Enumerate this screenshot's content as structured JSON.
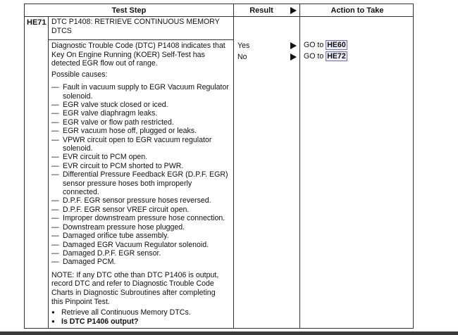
{
  "header": {
    "test_step": "Test Step",
    "result": "Result",
    "action": "Action to Take"
  },
  "step": {
    "id": "HE71",
    "title": "DTC P1408: RETRIEVE CONTINUOUS MEMORY DTCS",
    "description": "Diagnostic Trouble Code (DTC) P1408 indicates that Key On Engine Running (KOER) Self-Test has detected EGR flow out of range.",
    "causes_heading": "Possible causes:",
    "causes": [
      "Fault in vacuum supply to EGR Vacuum Regulator solenoid.",
      "EGR valve stuck closed or iced.",
      "EGR valve diaphragm leaks.",
      "EGR valve or flow path restricted.",
      "EGR vacuum hose off, plugged or leaks.",
      "VPWR circuit open to EGR vacuum regulator solenoid.",
      "EVR circuit to PCM open.",
      "EVR circuit to PCM shorted to PWR.",
      "Differential Pressure Feedback EGR (D.P.F. EGR) sensor pressure hoses both improperly connected.",
      "D.P.F. EGR sensor pressure hoses reversed.",
      "D.P.F. EGR sensor VREF circuit open.",
      "Improper downstream pressure hose connection.",
      "Downstream pressure hose plugged.",
      "Damaged orifice tube assembly.",
      "Damaged EGR Vacuum Regulator solenoid.",
      "Damaged D.P.F. EGR sensor.",
      "Damaged PCM."
    ],
    "note": "NOTE: If any DTC othe  than DTC P1406 is output, record DTC and refer to Diagnostic Trouble Code Charts in Diagnostic Subroutines after completing this Pinpoint Test.",
    "bullets": [
      "Retrieve all Continuous Memory DTCs.",
      "Is DTC P1406 output?"
    ]
  },
  "results": [
    {
      "result": "Yes",
      "go_to": "GO to",
      "target": "HE60"
    },
    {
      "result": "No",
      "go_to": "GO to",
      "target": "HE72"
    }
  ]
}
